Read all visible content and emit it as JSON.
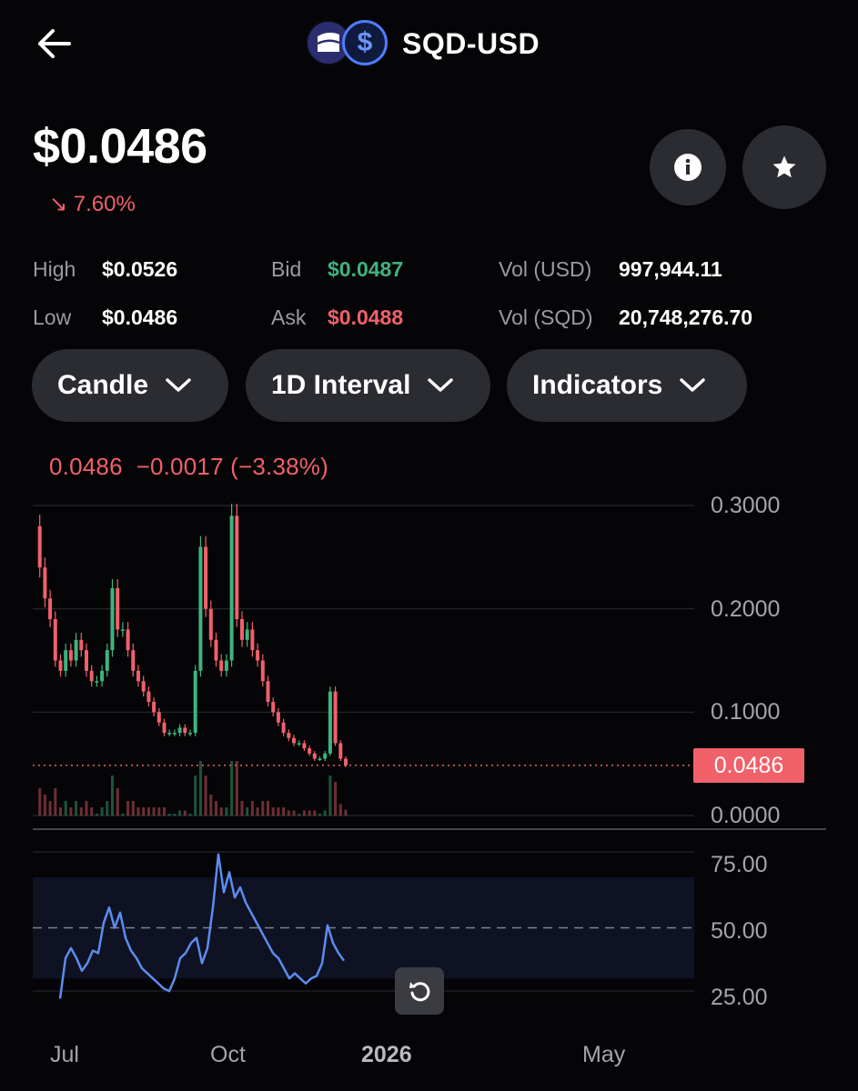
{
  "header": {
    "pair": "SQD-USD",
    "back_icon": "arrow-left-icon",
    "coin_icons": [
      "sqd-coin-icon",
      "usd-coin-icon"
    ],
    "usd_symbol": "$"
  },
  "price": {
    "current": "$0.0486",
    "change_arrow": "↘",
    "change_pct": "7.60%"
  },
  "stats": {
    "high_label": "High",
    "high_value": "$0.0526",
    "low_label": "Low",
    "low_value": "$0.0486",
    "bid_label": "Bid",
    "bid_value": "$0.0487",
    "ask_label": "Ask",
    "ask_value": "$0.0488",
    "vol_usd_label": "Vol (USD)",
    "vol_usd_value": "997,944.11",
    "vol_sqd_label": "Vol (SQD)",
    "vol_sqd_value": "20,748,276.70"
  },
  "controls": {
    "chart_type": "Candle",
    "interval": "1D Interval",
    "indicators": "Indicators"
  },
  "chart_header": {
    "last": "0.0486",
    "change": "−0.0017",
    "change_pct": "(−3.38%)"
  },
  "chart_data": {
    "type": "candlestick",
    "price_axis": [
      "0.3000",
      "0.2000",
      "0.1000",
      "0.0000"
    ],
    "ylim": [
      0,
      0.3
    ],
    "current_price_label": "0.0486",
    "current_price": 0.0486,
    "price_series": [
      0.28,
      0.24,
      0.21,
      0.19,
      0.15,
      0.14,
      0.16,
      0.15,
      0.17,
      0.16,
      0.14,
      0.13,
      0.13,
      0.14,
      0.16,
      0.22,
      0.18,
      0.18,
      0.16,
      0.14,
      0.13,
      0.12,
      0.11,
      0.1,
      0.09,
      0.08,
      0.08,
      0.08,
      0.085,
      0.08,
      0.08,
      0.14,
      0.26,
      0.2,
      0.17,
      0.15,
      0.14,
      0.15,
      0.29,
      0.19,
      0.17,
      0.18,
      0.16,
      0.15,
      0.13,
      0.11,
      0.1,
      0.09,
      0.08,
      0.075,
      0.07,
      0.07,
      0.065,
      0.06,
      0.055,
      0.055,
      0.06,
      0.12,
      0.07,
      0.055,
      0.0486
    ],
    "rsi_axis": [
      "75.00",
      "50.00",
      "25.00"
    ],
    "rsi_ylim": [
      20,
      80
    ],
    "rsi_band": [
      30,
      70
    ],
    "rsi_midline": 50,
    "rsi_series": [
      22,
      38,
      42,
      38,
      33,
      36,
      41,
      40,
      52,
      58,
      50,
      56,
      46,
      41,
      38,
      34,
      32,
      30,
      28,
      26,
      25,
      30,
      38,
      40,
      44,
      46,
      36,
      42,
      58,
      79,
      64,
      72,
      62,
      66,
      60,
      56,
      52,
      48,
      44,
      40,
      38,
      34,
      30,
      32,
      30,
      28,
      30,
      31,
      36,
      51,
      44,
      40,
      37
    ],
    "x_labels": [
      "Jul",
      "Oct",
      "2026",
      "May"
    ],
    "colors": {
      "up": "#3fb37f",
      "down": "#f0616a",
      "rsi": "#5b8cf0",
      "rsi_band": "#0f1222"
    }
  }
}
